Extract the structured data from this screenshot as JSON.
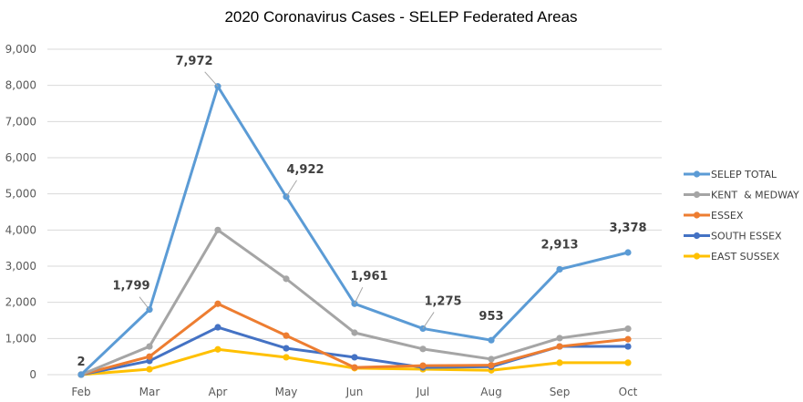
{
  "chart_data": {
    "type": "line",
    "title": "2020 Coronavirus Cases - SELEP Federated Areas",
    "xlabel": "",
    "ylabel": "",
    "categories": [
      "Feb",
      "Mar",
      "Apr",
      "May",
      "Jun",
      "Jul",
      "Aug",
      "Sep",
      "Oct"
    ],
    "ylim": [
      0,
      9000
    ],
    "yticks": [
      0,
      1000,
      2000,
      3000,
      4000,
      5000,
      6000,
      7000,
      8000,
      9000
    ],
    "ytick_labels": [
      "0",
      "1,000",
      "2,000",
      "3,000",
      "4,000",
      "5,000",
      "6,000",
      "7,000",
      "8,000",
      "9,000"
    ],
    "grid": true,
    "legend_position": "right",
    "series": [
      {
        "name": "SELEP TOTAL",
        "color": "#5b9bd5",
        "values": [
          2,
          1799,
          7972,
          4922,
          1961,
          1275,
          953,
          2913,
          3378
        ],
        "data_labels": [
          "2",
          "1,799",
          "7,972",
          "4,922",
          "1,961",
          "1,275",
          "953",
          "2,913",
          "3,378"
        ]
      },
      {
        "name": "KENT  & MEDWAY",
        "color": "#a5a5a5",
        "values": [
          1,
          780,
          4000,
          2650,
          1160,
          710,
          430,
          1010,
          1270
        ]
      },
      {
        "name": "ESSEX",
        "color": "#ed7d31",
        "values": [
          1,
          500,
          1960,
          1080,
          200,
          250,
          260,
          780,
          980
        ]
      },
      {
        "name": "SOUTH ESSEX",
        "color": "#4472c4",
        "values": [
          0,
          380,
          1310,
          730,
          480,
          200,
          220,
          780,
          780
        ]
      },
      {
        "name": "EAST SUSSEX",
        "color": "#ffc000",
        "values": [
          0,
          150,
          700,
          480,
          180,
          150,
          120,
          330,
          330
        ]
      }
    ]
  }
}
